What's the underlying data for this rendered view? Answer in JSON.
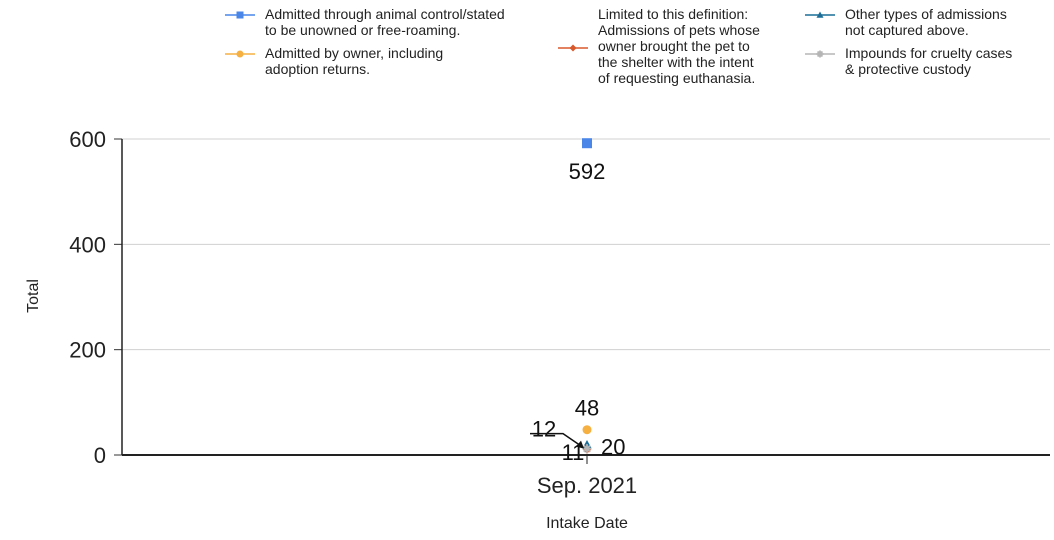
{
  "chart_data": {
    "type": "scatter",
    "title": "",
    "xlabel": "Intake Date",
    "ylabel": "Total",
    "categories": [
      "Sep. 2021"
    ],
    "ylim": [
      0,
      600
    ],
    "yticks": [
      "0",
      "200",
      "400",
      "600"
    ],
    "grid": "horizontal",
    "legend_position": "top",
    "series": [
      {
        "name_lines": [
          "Admitted through animal control/stated",
          "to be unowned or free-roaming."
        ],
        "color": "#4a86e8",
        "marker": "square",
        "values": [
          592
        ],
        "labels": [
          "592"
        ]
      },
      {
        "name_lines": [
          "Admitted by owner, including",
          "adoption returns."
        ],
        "color": "#f6b042",
        "marker": "circle",
        "values": [
          48
        ],
        "labels": [
          "48"
        ]
      },
      {
        "name_lines": [
          "Limited to this definition:",
          "Admissions of pets whose",
          "owner brought the pet to",
          "the shelter with the intent",
          "of requesting euthanasia."
        ],
        "color": "#d9582b",
        "marker": "diamond",
        "values": [
          11
        ],
        "labels": [
          "11"
        ]
      },
      {
        "name_lines": [
          "Other types of admissions",
          "not captured above."
        ],
        "color": "#1c6e99",
        "marker": "triangle",
        "values": [
          20
        ],
        "labels": [
          "20"
        ]
      },
      {
        "name_lines": [
          "Impounds for cruelty cases",
          "& protective custody"
        ],
        "color": "#b5b5b5",
        "marker": "star",
        "values": [
          12
        ],
        "labels": [
          "12"
        ]
      }
    ]
  }
}
